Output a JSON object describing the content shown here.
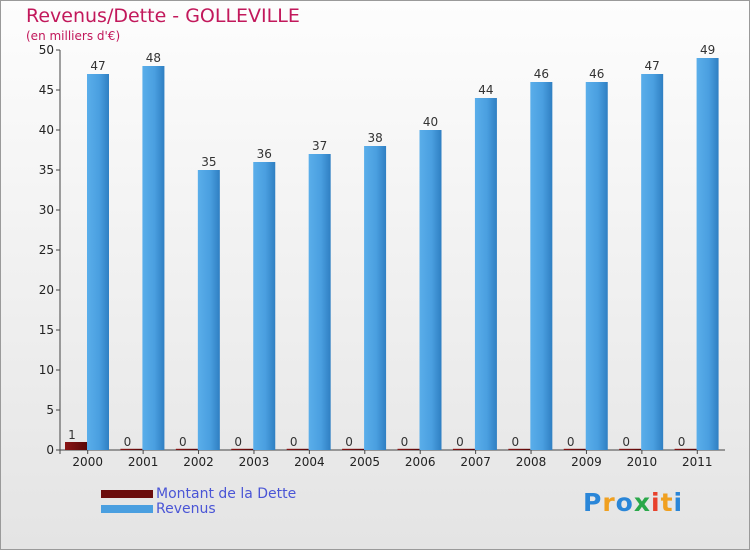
{
  "chart_data": {
    "type": "bar",
    "title": "Revenus/Dette - GOLLEVILLE",
    "subtitle": "(en milliers d'€)",
    "categories": [
      "2000",
      "2001",
      "2002",
      "2003",
      "2004",
      "2005",
      "2006",
      "2007",
      "2008",
      "2009",
      "2010",
      "2011"
    ],
    "series": [
      {
        "name": "Montant de la Dette",
        "values": [
          1,
          0,
          0,
          0,
          0,
          0,
          0,
          0,
          0,
          0,
          0,
          0
        ],
        "color": "#7a1010"
      },
      {
        "name": "Revenus",
        "values": [
          47,
          48,
          35,
          36,
          37,
          38,
          40,
          44,
          46,
          46,
          47,
          49
        ],
        "color": "#4a9fe0"
      }
    ],
    "yticks": [
      0,
      5,
      10,
      15,
      20,
      25,
      30,
      35,
      40,
      45,
      50
    ],
    "ylim": [
      0,
      50
    ],
    "grid": false,
    "legend_position": "bottom-left"
  },
  "logo": {
    "letters": [
      "P",
      "r",
      "o",
      "x",
      "i",
      "t",
      "i"
    ],
    "colors": [
      "#2a86d8",
      "#f0a020",
      "#2a86d8",
      "#2aa84a",
      "#e8412c",
      "#f0a020",
      "#2a86d8"
    ]
  }
}
